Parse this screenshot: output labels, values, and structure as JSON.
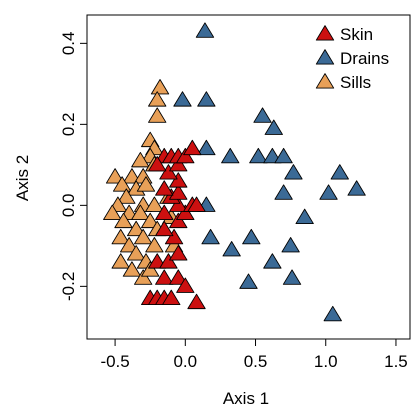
{
  "chart_data": {
    "type": "scatter",
    "marker": "triangle",
    "xlabel": "Axis 1",
    "ylabel": "Axis 2",
    "xlim": [
      -0.7,
      1.6
    ],
    "ylim": [
      -0.33,
      0.47
    ],
    "xticks": [
      "-0.5",
      "0.0",
      "0.5",
      "1.0",
      "1.5"
    ],
    "yticks": [
      "-0.2",
      "0.0",
      "0.2",
      "0.4"
    ],
    "legend_position": "top-right",
    "grid": false,
    "series": [
      {
        "name": "Skin",
        "color": "#cc1010",
        "points": [
          [
            -0.25,
            -0.23
          ],
          [
            -0.2,
            -0.23
          ],
          [
            -0.15,
            -0.23
          ],
          [
            -0.1,
            -0.23
          ],
          [
            0.08,
            -0.24
          ],
          [
            -0.15,
            -0.18
          ],
          [
            -0.05,
            -0.18
          ],
          [
            0.0,
            -0.2
          ],
          [
            -0.2,
            -0.14
          ],
          [
            -0.12,
            -0.14
          ],
          [
            -0.05,
            -0.12
          ],
          [
            -0.08,
            -0.08
          ],
          [
            -0.15,
            -0.06
          ],
          [
            -0.05,
            -0.04
          ],
          [
            0.0,
            -0.02
          ],
          [
            -0.15,
            -0.02
          ],
          [
            -0.05,
            0.0
          ],
          [
            0.05,
            0.0
          ],
          [
            0.08,
            0.0
          ],
          [
            -0.1,
            0.02
          ],
          [
            -0.05,
            0.03
          ],
          [
            -0.15,
            0.04
          ],
          [
            -0.05,
            0.06
          ],
          [
            -0.12,
            0.08
          ],
          [
            -0.05,
            0.1
          ],
          [
            -0.15,
            0.12
          ],
          [
            -0.1,
            0.12
          ],
          [
            -0.05,
            0.12
          ],
          [
            0.0,
            0.12
          ],
          [
            0.05,
            0.14
          ],
          [
            -0.2,
            0.1
          ]
        ]
      },
      {
        "name": "Drains",
        "color": "#3b6a96",
        "points": [
          [
            0.14,
            0.43
          ],
          [
            0.15,
            0.26
          ],
          [
            -0.02,
            0.26
          ],
          [
            0.55,
            0.22
          ],
          [
            0.63,
            0.19
          ],
          [
            0.15,
            0.14
          ],
          [
            0.32,
            0.12
          ],
          [
            0.52,
            0.12
          ],
          [
            0.62,
            0.12
          ],
          [
            0.7,
            0.12
          ],
          [
            0.77,
            0.08
          ],
          [
            1.1,
            0.08
          ],
          [
            1.22,
            0.04
          ],
          [
            1.02,
            0.03
          ],
          [
            0.7,
            0.03
          ],
          [
            0.15,
            0.0
          ],
          [
            0.85,
            -0.03
          ],
          [
            0.18,
            -0.08
          ],
          [
            0.47,
            -0.08
          ],
          [
            0.75,
            -0.1
          ],
          [
            0.33,
            -0.11
          ],
          [
            0.62,
            -0.14
          ],
          [
            0.76,
            -0.18
          ],
          [
            0.45,
            -0.19
          ],
          [
            1.05,
            -0.27
          ]
        ]
      },
      {
        "name": "Sills",
        "color": "#e8a058",
        "points": [
          [
            -0.18,
            0.29
          ],
          [
            -0.2,
            0.26
          ],
          [
            -0.2,
            0.22
          ],
          [
            -0.25,
            0.16
          ],
          [
            -0.22,
            0.14
          ],
          [
            -0.25,
            0.12
          ],
          [
            -0.32,
            0.11
          ],
          [
            -0.22,
            0.1
          ],
          [
            -0.38,
            0.07
          ],
          [
            -0.3,
            0.07
          ],
          [
            -0.5,
            0.07
          ],
          [
            -0.45,
            0.05
          ],
          [
            -0.35,
            0.04
          ],
          [
            -0.28,
            0.05
          ],
          [
            -0.42,
            0.02
          ],
          [
            -0.48,
            0.0
          ],
          [
            -0.3,
            0.0
          ],
          [
            -0.22,
            0.0
          ],
          [
            -0.4,
            -0.02
          ],
          [
            -0.32,
            -0.02
          ],
          [
            -0.52,
            -0.02
          ],
          [
            -0.44,
            -0.04
          ],
          [
            -0.25,
            -0.04
          ],
          [
            -0.35,
            -0.06
          ],
          [
            -0.2,
            -0.06
          ],
          [
            -0.46,
            -0.08
          ],
          [
            -0.3,
            -0.08
          ],
          [
            -0.4,
            -0.1
          ],
          [
            -0.22,
            -0.1
          ],
          [
            -0.35,
            -0.12
          ],
          [
            -0.46,
            -0.14
          ],
          [
            -0.28,
            -0.14
          ],
          [
            -0.38,
            -0.16
          ],
          [
            -0.3,
            -0.18
          ],
          [
            -0.25,
            -0.16
          ],
          [
            -0.1,
            -0.03
          ],
          [
            -0.12,
            0.02
          ],
          [
            -0.08,
            -0.1
          ]
        ]
      }
    ]
  }
}
